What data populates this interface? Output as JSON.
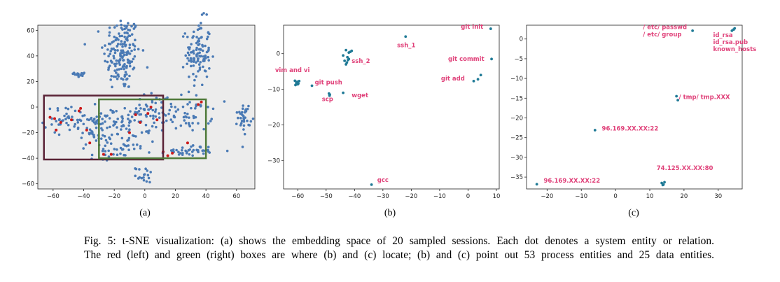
{
  "figure": {
    "caption_line1": "Fig. 5: t-SNE visualization: (a) shows the embedding space of 20 sampled sessions. Each dot denotes a system entity or relation.",
    "caption_line2": "The red (left) and green (right) boxes are where (b) and (c) locate; (b) and (c) point out 53 process entities and 25 data entities."
  },
  "colors": {
    "point": "#4a7ab5",
    "point_dark": "#1f7a96",
    "highlight": "#cc1a1a",
    "red_box": "#5a2336",
    "green_box": "#4f7a3a",
    "label": "#e0427a"
  },
  "chart_data": [
    {
      "id": "a",
      "type": "scatter",
      "sublabel": "(a)",
      "xlim": [
        -70,
        72
      ],
      "ylim": [
        -64,
        64
      ],
      "xticks": [
        -60,
        -40,
        -20,
        0,
        20,
        40,
        60
      ],
      "yticks": [
        -60,
        -40,
        -20,
        0,
        20,
        40,
        60
      ],
      "clusters": [
        {
          "cx": -15,
          "cy": 42,
          "rx": 6,
          "ry": 15,
          "n": 170
        },
        {
          "cx": 35,
          "cy": 42,
          "rx": 4,
          "ry": 13,
          "n": 110
        },
        {
          "cx": -42,
          "cy": 26,
          "rx": 2,
          "ry": 1.5,
          "n": 15
        },
        {
          "cx": -50,
          "cy": -10,
          "rx": 8,
          "ry": 5,
          "n": 45
        },
        {
          "cx": -32,
          "cy": -18,
          "rx": 5,
          "ry": 8,
          "n": 55
        },
        {
          "cx": -15,
          "cy": -10,
          "rx": 8,
          "ry": 5,
          "n": 40
        },
        {
          "cx": -8,
          "cy": -25,
          "rx": 6,
          "ry": 5,
          "n": 35
        },
        {
          "cx": 5,
          "cy": -5,
          "rx": 8,
          "ry": 8,
          "n": 45
        },
        {
          "cx": 28,
          "cy": -5,
          "rx": 8,
          "ry": 7,
          "n": 55
        },
        {
          "cx": 30,
          "cy": -34,
          "rx": 8,
          "ry": 2,
          "n": 40
        },
        {
          "cx": 65,
          "cy": -8,
          "rx": 2,
          "ry": 6,
          "n": 35
        },
        {
          "cx": 0,
          "cy": -53,
          "rx": 3,
          "ry": 3,
          "n": 18
        },
        {
          "cx": -25,
          "cy": -38,
          "rx": 5,
          "ry": 3,
          "n": 15
        }
      ],
      "highlight_points": [
        [
          -62,
          -8
        ],
        [
          -59,
          -9
        ],
        [
          -55,
          -12
        ],
        [
          -58,
          -18
        ],
        [
          -48,
          -10
        ],
        [
          -43,
          -3
        ],
        [
          -42,
          -1
        ],
        [
          -38,
          -18
        ],
        [
          -36,
          -28
        ],
        [
          -27,
          -37
        ],
        [
          -22,
          -37
        ],
        [
          -10,
          -20
        ],
        [
          -6,
          -6
        ],
        [
          -3,
          -12
        ],
        [
          2,
          -5
        ],
        [
          4,
          0
        ],
        [
          8,
          -10
        ],
        [
          12,
          -35
        ],
        [
          15,
          -38
        ],
        [
          18,
          -36
        ],
        [
          28,
          -28
        ],
        [
          35,
          2
        ],
        [
          37,
          4
        ]
      ],
      "red_box": {
        "x0": -66,
        "x1": 12,
        "y0": -41,
        "y1": 9
      },
      "green_box": {
        "x0": -30,
        "x1": 40,
        "y0": -40,
        "y1": 6
      }
    },
    {
      "id": "b",
      "type": "scatter",
      "sublabel": "(b)",
      "xlim": [
        -65,
        11
      ],
      "ylim": [
        -38,
        8
      ],
      "xticks": [
        -60,
        -50,
        -40,
        -30,
        -20,
        -10,
        0,
        10
      ],
      "yticks": [
        0,
        -10,
        -20,
        -30
      ],
      "points": [
        [
          -61,
          -7.6
        ],
        [
          -60.5,
          -8.2
        ],
        [
          -60.2,
          -7.9
        ],
        [
          -60,
          -8.6
        ],
        [
          -59.8,
          -8.4
        ],
        [
          -59.5,
          -7.7
        ],
        [
          -60.8,
          -8.8
        ],
        [
          -55,
          -9
        ],
        [
          -49,
          -11.2
        ],
        [
          -48.8,
          -11.8
        ],
        [
          -48.7,
          -11.5
        ],
        [
          -44,
          -11
        ],
        [
          -44,
          -0.5
        ],
        [
          -43.5,
          -2
        ],
        [
          -43,
          -3
        ],
        [
          -43,
          1
        ],
        [
          -42.7,
          -2.5
        ],
        [
          -42.5,
          -1
        ],
        [
          -42.3,
          -1.8
        ],
        [
          -42,
          -1.5
        ],
        [
          -41.5,
          0.5
        ],
        [
          -41,
          0.8
        ],
        [
          -42,
          0.3
        ],
        [
          -22,
          4.8
        ],
        [
          -34,
          -36.8
        ],
        [
          2,
          -7.7
        ],
        [
          3.5,
          -7.2
        ],
        [
          4.5,
          -6
        ],
        [
          8,
          7
        ],
        [
          8.3,
          -1.5
        ]
      ],
      "labels": [
        {
          "text": "vim and vi",
          "x": -68,
          "y": -5.2
        },
        {
          "text": "git push",
          "x": -54,
          "y": -8.6
        },
        {
          "text": "scp",
          "x": -51.5,
          "y": -13.3
        },
        {
          "text": "wget",
          "x": -41,
          "y": -12.2
        },
        {
          "text": "ssh_2",
          "x": -41,
          "y": -2.6
        },
        {
          "text": "ssh_1",
          "x": -25,
          "y": 1.8
        },
        {
          "text": "git init",
          "x": -2.5,
          "y": 7
        },
        {
          "text": "git commit",
          "x": -7,
          "y": -2
        },
        {
          "text": "git add",
          "x": -9.5,
          "y": -7.5
        },
        {
          "text": "gcc",
          "x": -32,
          "y": -36
        }
      ]
    },
    {
      "id": "c",
      "type": "scatter",
      "sublabel": "(c)",
      "xlim": [
        -26,
        37
      ],
      "ylim": [
        -38,
        3.5
      ],
      "xticks": [
        -20,
        -10,
        0,
        10,
        20,
        30
      ],
      "yticks": [
        0,
        -5,
        -10,
        -15,
        -20,
        -25,
        -30,
        -35
      ],
      "points": [
        [
          -23,
          -36.8
        ],
        [
          -6,
          -23.1
        ],
        [
          13.5,
          -36.5
        ],
        [
          14,
          -36.9
        ],
        [
          14.3,
          -36.3
        ],
        [
          13.8,
          -37
        ],
        [
          17.8,
          -14.5
        ],
        [
          18.2,
          -15.5
        ],
        [
          22.5,
          2.1
        ],
        [
          34,
          2.1
        ],
        [
          34.5,
          2.4
        ],
        [
          34.8,
          2.7
        ]
      ],
      "labels": [
        {
          "text": "/ etc/ passwd",
          "x": 8,
          "y": 2.5
        },
        {
          "text": "/ etc/ group",
          "x": 8,
          "y": 0.7
        },
        {
          "text": "id_rsa",
          "x": 28.5,
          "y": 0.5
        },
        {
          "text": "id_rsa.pub",
          "x": 28.5,
          "y": -1.3
        },
        {
          "text": "known_hosts",
          "x": 28.5,
          "y": -3.1
        },
        {
          "text": "/ tmp/ tmp.XXX",
          "x": 18.5,
          "y": -15.2
        },
        {
          "text": "96.169.XX.XX:22",
          "x": -4,
          "y": -23.2
        },
        {
          "text": "96.169.XX.XX:22",
          "x": -21,
          "y": -36.4
        },
        {
          "text": "74.125.XX.XX:80",
          "x": 12,
          "y": -33.2
        }
      ]
    }
  ]
}
